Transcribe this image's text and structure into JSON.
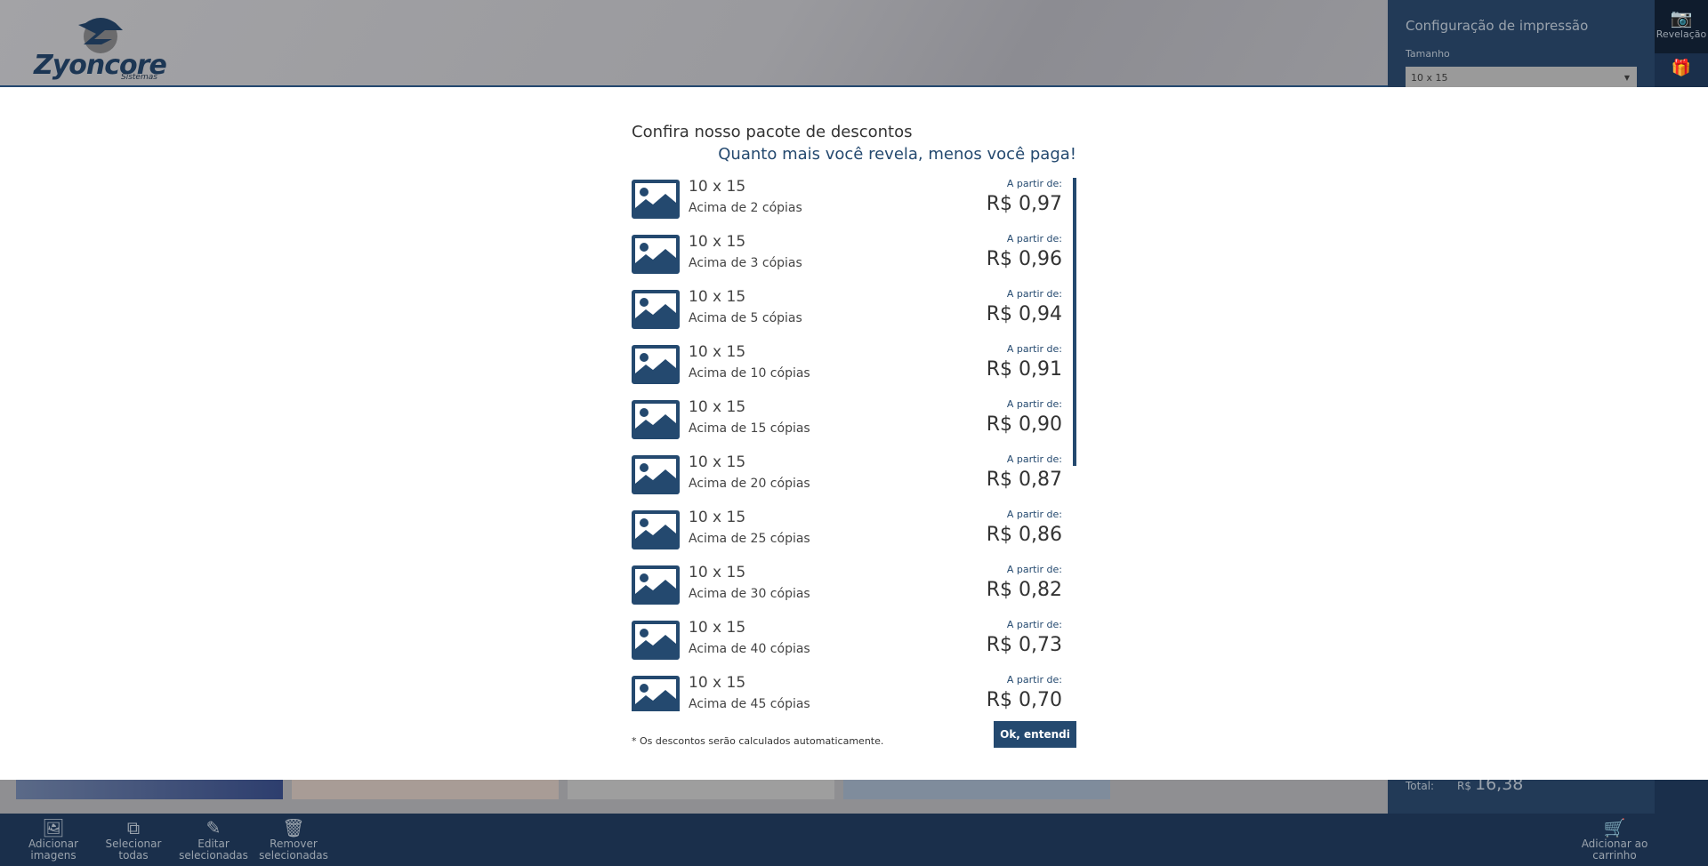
{
  "header": {
    "logo_text": "Zyoncore",
    "logo_sub": "Sistemas"
  },
  "config": {
    "title": "Configuração de impressão",
    "size_label": "Tamanho",
    "size_value": "10 x 15"
  },
  "side": {
    "active_label": "Revelação",
    "active_icon": "camera-icon",
    "second_icon": "gift-icon"
  },
  "modal": {
    "title": "Confira nosso pacote de descontos",
    "subtitle": "Quanto mais você revela, menos você paga!",
    "items": [
      {
        "name": "10 x 15",
        "desc": "Acima de 2 cópias",
        "from": "A partir de:",
        "price": "R$ 0,97"
      },
      {
        "name": "10 x 15",
        "desc": "Acima de 3 cópias",
        "from": "A partir de:",
        "price": "R$ 0,96"
      },
      {
        "name": "10 x 15",
        "desc": "Acima de 5 cópias",
        "from": "A partir de:",
        "price": "R$ 0,94"
      },
      {
        "name": "10 x 15",
        "desc": "Acima de 10 cópias",
        "from": "A partir de:",
        "price": "R$ 0,91"
      },
      {
        "name": "10 x 15",
        "desc": "Acima de 15 cópias",
        "from": "A partir de:",
        "price": "R$ 0,90"
      },
      {
        "name": "10 x 15",
        "desc": "Acima de 20 cópias",
        "from": "A partir de:",
        "price": "R$ 0,87"
      },
      {
        "name": "10 x 15",
        "desc": "Acima de 25 cópias",
        "from": "A partir de:",
        "price": "R$ 0,86"
      },
      {
        "name": "10 x 15",
        "desc": "Acima de 30 cópias",
        "from": "A partir de:",
        "price": "R$ 0,82"
      },
      {
        "name": "10 x 15",
        "desc": "Acima de 40 cópias",
        "from": "A partir de:",
        "price": "R$ 0,73"
      },
      {
        "name": "10 x 15",
        "desc": "Acima de 45 cópias",
        "from": "A partir de:",
        "price": "R$ 0,70"
      }
    ],
    "note": "* Os descontos serão calculados automaticamente.",
    "ok_label": "Ok, entendi"
  },
  "total": {
    "label": "Total:",
    "currency": "R$",
    "value": "16,38"
  },
  "toolbar": [
    {
      "icon": "image-icon",
      "label1": "Adicionar",
      "label2": "imagens"
    },
    {
      "icon": "select-all-icon",
      "label1": "Selecionar",
      "label2": "todas"
    },
    {
      "icon": "pencil-icon",
      "label1": "Editar",
      "label2": "selecionadas"
    },
    {
      "icon": "trash-icon",
      "label1": "Remover",
      "label2": "selecionadas"
    }
  ],
  "cart": {
    "icon": "cart-icon",
    "label1": "Adicionar ao",
    "label2": "carrinho"
  }
}
